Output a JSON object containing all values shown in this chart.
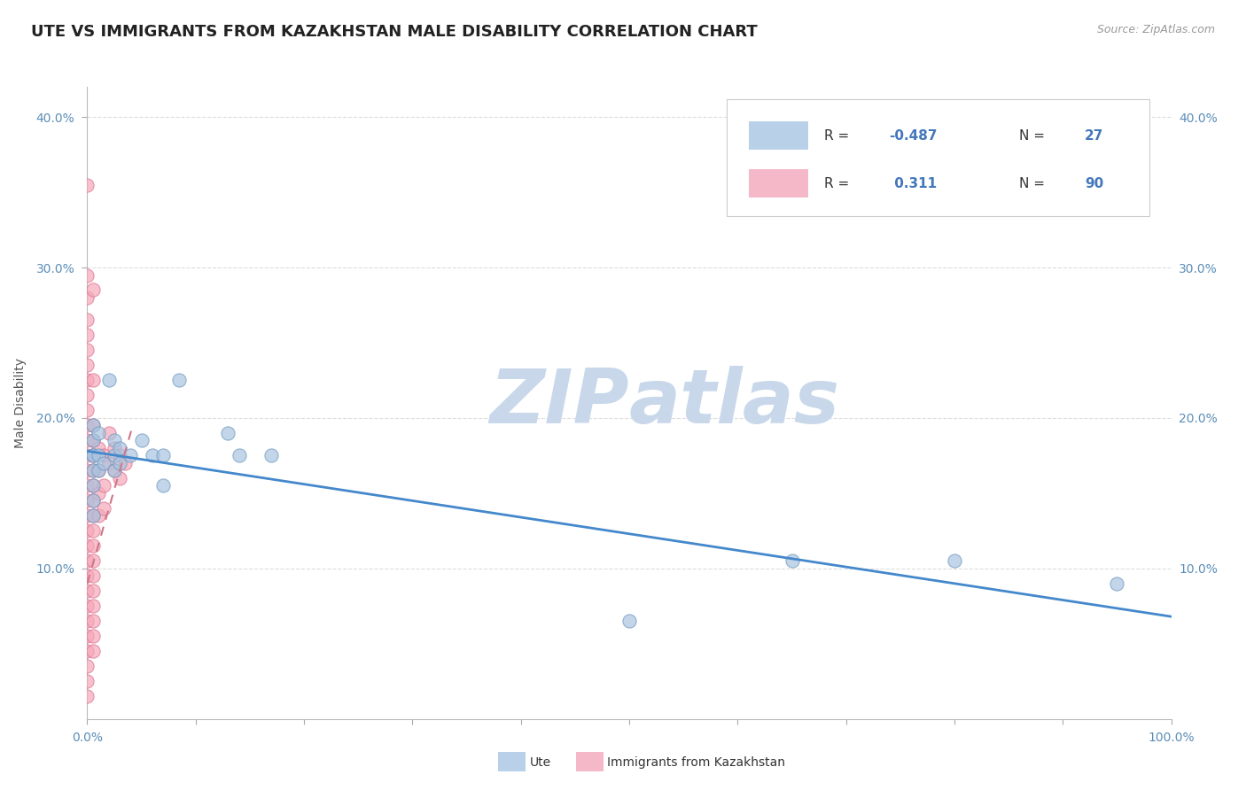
{
  "title": "UTE VS IMMIGRANTS FROM KAZAKHSTAN MALE DISABILITY CORRELATION CHART",
  "source": "Source: ZipAtlas.com",
  "ylabel": "Male Disability",
  "xlim": [
    0.0,
    1.0
  ],
  "ylim": [
    0.0,
    0.42
  ],
  "yticks": [
    0.1,
    0.2,
    0.3,
    0.4
  ],
  "ytick_labels": [
    "10.0%",
    "20.0%",
    "30.0%",
    "40.0%"
  ],
  "xticks": [
    0.0,
    0.1,
    0.2,
    0.3,
    0.4,
    0.5,
    0.6,
    0.7,
    0.8,
    0.9,
    1.0
  ],
  "xtick_labels": [
    "0.0%",
    "",
    "",
    "",
    "",
    "",
    "",
    "",
    "",
    "",
    "100.0%"
  ],
  "watermark_zip": "ZIP",
  "watermark_atlas": "atlas",
  "watermark_color": "#c8d8ea",
  "blue_dot_color": "#a8c4e0",
  "pink_dot_color": "#f5a8b8",
  "pink_dot_edge": "#e07090",
  "blue_dot_edge": "#7099c0",
  "trend_blue_color": "#4488cc",
  "trend_pink_color": "#cc7788",
  "legend_blue_fill": "#b8d0e8",
  "legend_pink_fill": "#f5b8c8",
  "ute_scatter": [
    [
      0.005,
      0.195
    ],
    [
      0.005,
      0.185
    ],
    [
      0.005,
      0.175
    ],
    [
      0.005,
      0.165
    ],
    [
      0.005,
      0.155
    ],
    [
      0.005,
      0.145
    ],
    [
      0.005,
      0.135
    ],
    [
      0.005,
      0.175
    ],
    [
      0.01,
      0.19
    ],
    [
      0.01,
      0.175
    ],
    [
      0.01,
      0.165
    ],
    [
      0.015,
      0.17
    ],
    [
      0.02,
      0.225
    ],
    [
      0.025,
      0.185
    ],
    [
      0.025,
      0.175
    ],
    [
      0.025,
      0.165
    ],
    [
      0.03,
      0.18
    ],
    [
      0.03,
      0.17
    ],
    [
      0.04,
      0.175
    ],
    [
      0.05,
      0.185
    ],
    [
      0.06,
      0.175
    ],
    [
      0.07,
      0.175
    ],
    [
      0.07,
      0.155
    ],
    [
      0.085,
      0.225
    ],
    [
      0.13,
      0.19
    ],
    [
      0.14,
      0.175
    ],
    [
      0.17,
      0.175
    ],
    [
      0.5,
      0.065
    ],
    [
      0.65,
      0.105
    ],
    [
      0.8,
      0.105
    ],
    [
      0.95,
      0.09
    ]
  ],
  "kaz_scatter": [
    [
      0.0,
      0.355
    ],
    [
      0.0,
      0.295
    ],
    [
      0.0,
      0.28
    ],
    [
      0.0,
      0.265
    ],
    [
      0.0,
      0.255
    ],
    [
      0.0,
      0.245
    ],
    [
      0.0,
      0.235
    ],
    [
      0.0,
      0.225
    ],
    [
      0.0,
      0.215
    ],
    [
      0.0,
      0.205
    ],
    [
      0.0,
      0.195
    ],
    [
      0.0,
      0.185
    ],
    [
      0.0,
      0.175
    ],
    [
      0.0,
      0.165
    ],
    [
      0.0,
      0.155
    ],
    [
      0.0,
      0.145
    ],
    [
      0.0,
      0.135
    ],
    [
      0.0,
      0.125
    ],
    [
      0.0,
      0.115
    ],
    [
      0.0,
      0.105
    ],
    [
      0.0,
      0.095
    ],
    [
      0.0,
      0.085
    ],
    [
      0.0,
      0.075
    ],
    [
      0.0,
      0.065
    ],
    [
      0.0,
      0.055
    ],
    [
      0.0,
      0.045
    ],
    [
      0.0,
      0.035
    ],
    [
      0.0,
      0.025
    ],
    [
      0.0,
      0.015
    ],
    [
      0.005,
      0.285
    ],
    [
      0.005,
      0.225
    ],
    [
      0.005,
      0.195
    ],
    [
      0.005,
      0.185
    ],
    [
      0.005,
      0.175
    ],
    [
      0.005,
      0.165
    ],
    [
      0.005,
      0.155
    ],
    [
      0.005,
      0.145
    ],
    [
      0.005,
      0.135
    ],
    [
      0.005,
      0.125
    ],
    [
      0.005,
      0.115
    ],
    [
      0.005,
      0.105
    ],
    [
      0.005,
      0.095
    ],
    [
      0.005,
      0.085
    ],
    [
      0.005,
      0.075
    ],
    [
      0.005,
      0.065
    ],
    [
      0.005,
      0.055
    ],
    [
      0.005,
      0.045
    ],
    [
      0.01,
      0.18
    ],
    [
      0.01,
      0.165
    ],
    [
      0.01,
      0.15
    ],
    [
      0.01,
      0.135
    ],
    [
      0.015,
      0.175
    ],
    [
      0.015,
      0.155
    ],
    [
      0.015,
      0.14
    ],
    [
      0.02,
      0.19
    ],
    [
      0.02,
      0.17
    ],
    [
      0.025,
      0.18
    ],
    [
      0.025,
      0.165
    ],
    [
      0.03,
      0.175
    ],
    [
      0.03,
      0.16
    ],
    [
      0.035,
      0.17
    ]
  ],
  "blue_trend_x": [
    0.0,
    1.0
  ],
  "blue_trend_y": [
    0.178,
    0.068
  ],
  "pink_trend_x": [
    0.0,
    0.042
  ],
  "pink_trend_y": [
    0.09,
    0.195
  ],
  "background_color": "#ffffff",
  "grid_color": "#dddddd",
  "title_fontsize": 13,
  "label_fontsize": 10,
  "tick_fontsize": 10,
  "tick_color": "#5b8db8",
  "legend_text_r_color": "#4477bb",
  "legend_text_n_color": "#4477bb"
}
